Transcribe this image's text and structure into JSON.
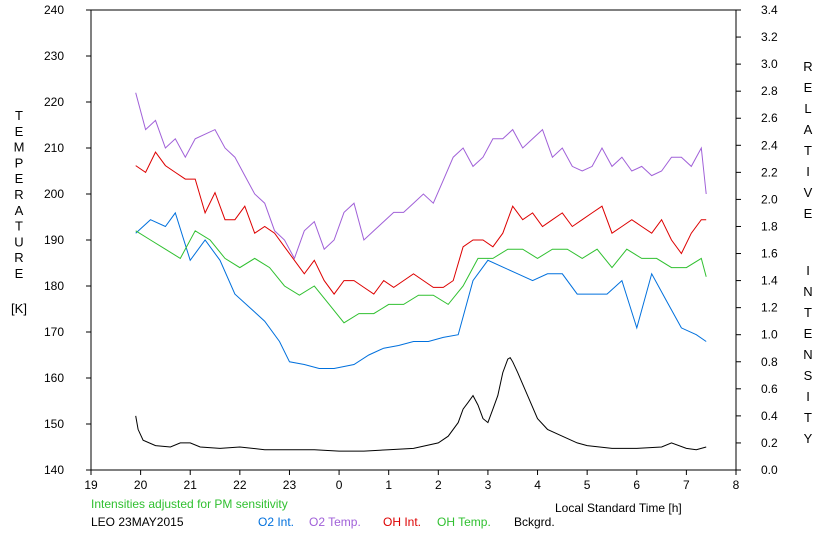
{
  "chart_data": {
    "type": "line",
    "left_axis_label": "TEMPERATURE",
    "left_axis_unit": "[K]",
    "right_axis_label": "RELATIVE INTENSITY",
    "x_label": "Local Standard Time [h]",
    "note": "Intensities adjusted for PM sensitivity",
    "site_date": "LEO 23MAY2015",
    "x_ticks": [
      "19",
      "20",
      "21",
      "22",
      "23",
      "0",
      "1",
      "2",
      "3",
      "4",
      "5",
      "6",
      "7",
      "8"
    ],
    "xlim": [
      19,
      32
    ],
    "y_left_ticks": [
      "140",
      "150",
      "160",
      "170",
      "180",
      "190",
      "200",
      "210",
      "220",
      "230",
      "240"
    ],
    "ylim_left": [
      140,
      240
    ],
    "y_right_ticks": [
      "0.0",
      "0.2",
      "0.4",
      "0.6",
      "0.8",
      "1.0",
      "1.2",
      "1.4",
      "1.6",
      "1.8",
      "2.0",
      "2.2",
      "2.4",
      "2.6",
      "2.8",
      "3.0",
      "3.2",
      "3.4"
    ],
    "ylim_right": [
      0,
      3.4
    ],
    "grid": false,
    "legend_placement": "bottom",
    "series": [
      {
        "name": "O2 Int.",
        "axis": "right",
        "color": "#0070dd",
        "x": [
          19.9,
          20.2,
          20.5,
          20.7,
          21.0,
          21.3,
          21.6,
          21.9,
          22.2,
          22.5,
          22.8,
          23.0,
          23.3,
          23.6,
          23.9,
          24.3,
          24.6,
          24.9,
          25.2,
          25.5,
          25.8,
          26.1,
          26.4,
          26.7,
          27.0,
          27.3,
          27.6,
          27.9,
          28.2,
          28.5,
          28.8,
          29.1,
          29.4,
          29.7,
          30.0,
          30.3,
          30.6,
          30.9,
          31.2,
          31.4
        ],
        "y": [
          1.75,
          1.85,
          1.8,
          1.9,
          1.55,
          1.7,
          1.55,
          1.3,
          1.2,
          1.1,
          0.95,
          0.8,
          0.78,
          0.75,
          0.75,
          0.78,
          0.85,
          0.9,
          0.92,
          0.95,
          0.95,
          0.98,
          1.0,
          1.4,
          1.55,
          1.5,
          1.45,
          1.4,
          1.45,
          1.45,
          1.3,
          1.3,
          1.3,
          1.4,
          1.05,
          1.45,
          1.25,
          1.05,
          1.0,
          0.95
        ]
      },
      {
        "name": "O2 Temp.",
        "axis": "left",
        "color": "#a060d8",
        "x": [
          19.9,
          20.1,
          20.3,
          20.5,
          20.7,
          20.9,
          21.1,
          21.3,
          21.5,
          21.7,
          21.9,
          22.1,
          22.3,
          22.5,
          22.7,
          22.9,
          23.1,
          23.3,
          23.5,
          23.7,
          23.9,
          24.1,
          24.3,
          24.5,
          24.7,
          24.9,
          25.1,
          25.3,
          25.5,
          25.7,
          25.9,
          26.1,
          26.3,
          26.5,
          26.7,
          26.9,
          27.1,
          27.3,
          27.5,
          27.7,
          27.9,
          28.1,
          28.3,
          28.5,
          28.7,
          28.9,
          29.1,
          29.3,
          29.5,
          29.7,
          29.9,
          30.1,
          30.3,
          30.5,
          30.7,
          30.9,
          31.1,
          31.3,
          31.4
        ],
        "y": [
          222,
          214,
          216,
          210,
          212,
          208,
          212,
          213,
          214,
          210,
          208,
          204,
          200,
          198,
          192,
          190,
          186,
          192,
          194,
          188,
          190,
          196,
          198,
          190,
          192,
          194,
          196,
          196,
          198,
          200,
          198,
          203,
          208,
          210,
          206,
          208,
          212,
          212,
          214,
          210,
          212,
          214,
          208,
          210,
          206,
          205,
          206,
          210,
          206,
          208,
          205,
          206,
          204,
          205,
          208,
          208,
          206,
          210,
          200
        ]
      },
      {
        "name": "OH Int.",
        "axis": "right",
        "color": "#dd0000",
        "x": [
          19.9,
          20.1,
          20.3,
          20.5,
          20.7,
          20.9,
          21.1,
          21.3,
          21.5,
          21.7,
          21.9,
          22.1,
          22.3,
          22.5,
          22.7,
          22.9,
          23.1,
          23.3,
          23.5,
          23.7,
          23.9,
          24.1,
          24.3,
          24.5,
          24.7,
          24.9,
          25.1,
          25.3,
          25.5,
          25.7,
          25.9,
          26.1,
          26.3,
          26.5,
          26.7,
          26.9,
          27.1,
          27.3,
          27.5,
          27.7,
          27.9,
          28.1,
          28.3,
          28.5,
          28.7,
          28.9,
          29.1,
          29.3,
          29.5,
          29.7,
          29.9,
          30.1,
          30.3,
          30.5,
          30.7,
          30.9,
          31.1,
          31.3,
          31.4
        ],
        "y": [
          2.25,
          2.2,
          2.35,
          2.25,
          2.2,
          2.15,
          2.15,
          1.9,
          2.05,
          1.85,
          1.85,
          1.95,
          1.75,
          1.8,
          1.75,
          1.65,
          1.55,
          1.45,
          1.55,
          1.4,
          1.3,
          1.4,
          1.4,
          1.35,
          1.3,
          1.4,
          1.35,
          1.4,
          1.45,
          1.4,
          1.35,
          1.35,
          1.4,
          1.65,
          1.7,
          1.7,
          1.65,
          1.75,
          1.95,
          1.85,
          1.9,
          1.8,
          1.85,
          1.9,
          1.8,
          1.85,
          1.9,
          1.95,
          1.75,
          1.8,
          1.85,
          1.8,
          1.75,
          1.85,
          1.7,
          1.6,
          1.75,
          1.85,
          1.85
        ]
      },
      {
        "name": "OH Temp.",
        "axis": "left",
        "color": "#30c030",
        "x": [
          19.9,
          20.2,
          20.5,
          20.8,
          21.1,
          21.4,
          21.7,
          22.0,
          22.3,
          22.6,
          22.9,
          23.2,
          23.5,
          23.8,
          24.1,
          24.4,
          24.7,
          25.0,
          25.3,
          25.6,
          25.9,
          26.2,
          26.5,
          26.8,
          27.1,
          27.4,
          27.7,
          28.0,
          28.3,
          28.6,
          28.9,
          29.2,
          29.5,
          29.8,
          30.1,
          30.4,
          30.7,
          31.0,
          31.3,
          31.4
        ],
        "y": [
          192,
          190,
          188,
          186,
          192,
          190,
          186,
          184,
          186,
          184,
          180,
          178,
          180,
          176,
          172,
          174,
          174,
          176,
          176,
          178,
          178,
          176,
          180,
          186,
          186,
          188,
          188,
          186,
          188,
          188,
          186,
          188,
          184,
          188,
          186,
          186,
          184,
          184,
          186,
          182
        ]
      },
      {
        "name": "Bckgrd.",
        "axis": "right",
        "color": "#000000",
        "x": [
          19.9,
          19.95,
          20.05,
          20.3,
          20.6,
          20.8,
          21.0,
          21.2,
          21.6,
          22.0,
          22.5,
          23.0,
          23.5,
          24.0,
          24.5,
          25.0,
          25.5,
          26.0,
          26.2,
          26.4,
          26.5,
          26.6,
          26.7,
          26.8,
          26.9,
          27.0,
          27.1,
          27.2,
          27.3,
          27.4,
          27.45,
          27.5,
          27.6,
          27.8,
          28.0,
          28.2,
          28.5,
          28.8,
          29.0,
          29.5,
          30.0,
          30.5,
          30.7,
          31.0,
          31.2,
          31.4
        ],
        "y": [
          0.4,
          0.3,
          0.22,
          0.18,
          0.17,
          0.2,
          0.2,
          0.17,
          0.16,
          0.17,
          0.15,
          0.15,
          0.15,
          0.14,
          0.14,
          0.15,
          0.16,
          0.2,
          0.25,
          0.35,
          0.45,
          0.5,
          0.55,
          0.48,
          0.38,
          0.35,
          0.45,
          0.55,
          0.72,
          0.82,
          0.83,
          0.8,
          0.72,
          0.55,
          0.38,
          0.3,
          0.25,
          0.2,
          0.18,
          0.16,
          0.16,
          0.17,
          0.2,
          0.16,
          0.15,
          0.17
        ]
      }
    ]
  }
}
